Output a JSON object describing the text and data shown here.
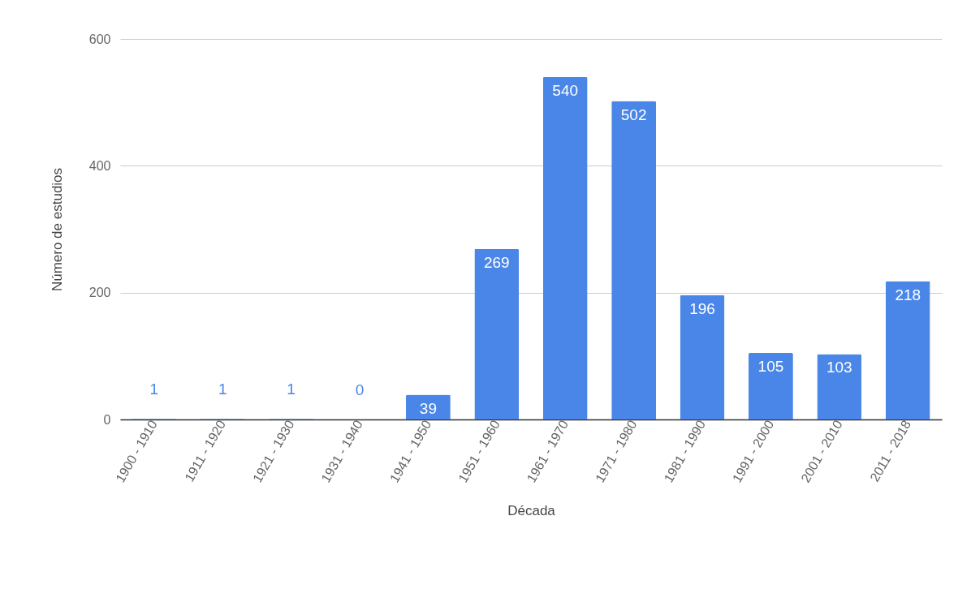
{
  "chart_data": {
    "type": "bar",
    "xlabel": "Década",
    "ylabel": "Número de estudios",
    "categories": [
      "1900 - 1910",
      "1911 - 1920",
      "1921 - 1930",
      "1931 - 1940",
      "1941 - 1950",
      "1951 - 1960",
      "1961 - 1970",
      "1971 - 1980",
      "1981 - 1990",
      "1991 - 2000",
      "2001 - 2010",
      "2011 - 2018"
    ],
    "values": [
      1,
      1,
      1,
      0,
      39,
      269,
      540,
      502,
      196,
      105,
      103,
      218
    ],
    "color": "#4a86e8",
    "ylim": [
      0,
      600
    ],
    "yticks": [
      0,
      200,
      400,
      600
    ],
    "grid": "y",
    "data_labels": true
  }
}
